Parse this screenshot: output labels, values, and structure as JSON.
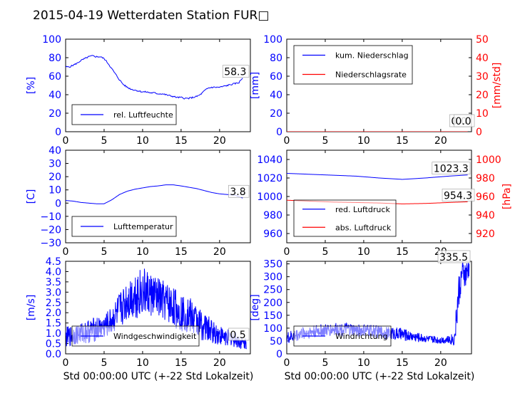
{
  "title": "2015-04-19 Wetterdaten Station FUR□",
  "colors": {
    "blue": "#0000ff",
    "red": "#ff0000",
    "lightblue": "#7f7fff",
    "black": "#000000"
  },
  "chart_data": [
    {
      "type": "line",
      "ylabel": "[%]",
      "xlim": [
        0,
        24
      ],
      "ylim": [
        0,
        100
      ],
      "xticks": [
        "0",
        "5",
        "10",
        "15",
        "20"
      ],
      "yticks": [
        "0",
        "20",
        "40",
        "60",
        "80",
        "100"
      ],
      "legend": {
        "placement": "lower-left",
        "entries": [
          "rel. Luftfeuchte"
        ]
      },
      "last_value_label": "58.3",
      "series": [
        {
          "name": "rel. Luftfeuchte",
          "color": "blue",
          "x": [
            0,
            0.5,
            1,
            1.5,
            2,
            2.5,
            3,
            3.5,
            4,
            4.5,
            5,
            5.5,
            6,
            6.5,
            7,
            7.5,
            8,
            8.5,
            9,
            9.5,
            10,
            10.5,
            11,
            11.5,
            12,
            12.5,
            13,
            13.5,
            14,
            14.5,
            15,
            15.5,
            16,
            16.5,
            17,
            17.5,
            18,
            18.5,
            19,
            19.5,
            20,
            20.5,
            21,
            21.5,
            22,
            22.5,
            23
          ],
          "y": [
            70,
            70,
            72,
            74,
            77,
            79,
            81,
            82,
            81,
            81,
            79,
            74,
            68,
            62,
            56,
            51,
            48,
            46,
            45,
            44,
            43,
            43,
            42,
            42,
            41,
            41,
            40,
            39,
            38,
            37,
            37,
            36,
            36,
            37,
            38,
            40,
            44,
            47,
            48,
            48,
            48,
            49,
            50,
            51,
            52,
            53,
            58.3
          ]
        }
      ]
    },
    {
      "type": "line",
      "ylabel": "[mm]",
      "y2label": "[mm/std]",
      "xlim": [
        0,
        24
      ],
      "ylim": [
        0,
        100
      ],
      "y2lim": [
        0,
        50
      ],
      "xticks": [
        "0",
        "5",
        "10",
        "15",
        "20"
      ],
      "yticks": [
        "0",
        "20",
        "40",
        "60",
        "80",
        "100"
      ],
      "y2ticks": [
        "0",
        "10",
        "20",
        "30",
        "40",
        "50"
      ],
      "legend": {
        "placement": "upper-left",
        "entries": [
          "kum. Niederschlag",
          "Niederschlagsrate"
        ]
      },
      "last_value_label": "0.0",
      "last_value_label2": "0.0",
      "series": [
        {
          "name": "kum. Niederschlag",
          "color": "blue",
          "x": [
            0,
            23.5
          ],
          "y": [
            0,
            0
          ]
        },
        {
          "name": "Niederschlagsrate",
          "color": "red",
          "axis": "right",
          "x": [
            0,
            23.5
          ],
          "y": [
            0,
            0
          ]
        }
      ]
    },
    {
      "type": "line",
      "ylabel": "[C]",
      "xlim": [
        0,
        24
      ],
      "ylim": [
        -30,
        40
      ],
      "xticks": [
        "0",
        "5",
        "10",
        "15",
        "20"
      ],
      "yticks": [
        "−30",
        "−20",
        "−10",
        "0",
        "10",
        "20",
        "30",
        "40"
      ],
      "legend": {
        "placement": "lower-left",
        "entries": [
          "Lufttemperatur"
        ]
      },
      "last_value_label": "3.8",
      "series": [
        {
          "name": "Lufttemperatur",
          "color": "blue",
          "x": [
            0,
            1,
            2,
            3,
            4,
            5,
            6,
            7,
            8,
            9,
            10,
            11,
            12,
            13,
            14,
            15,
            16,
            17,
            18,
            19,
            20,
            21,
            22,
            23
          ],
          "y": [
            2,
            1.5,
            0.5,
            0,
            -0.5,
            -0.5,
            2.5,
            6.5,
            9,
            10.5,
            11.5,
            12.5,
            13,
            13.8,
            13.8,
            13,
            12,
            11,
            9.5,
            8,
            7,
            6.5,
            6,
            3.8
          ]
        }
      ]
    },
    {
      "type": "line",
      "ylabel": "[hPa]",
      "ylabel_side": "right",
      "xlim": [
        0,
        24
      ],
      "ylim": [
        950,
        1050
      ],
      "y2lim": [
        910,
        1010
      ],
      "xticks": [
        "0",
        "5",
        "10",
        "15",
        "20"
      ],
      "yticks": [
        "960",
        "980",
        "1000",
        "1020",
        "1040"
      ],
      "y2ticks": [
        "920",
        "940",
        "960",
        "980",
        "1000"
      ],
      "legend": {
        "placement": "lower-left",
        "entries": [
          "red. Luftdruck",
          "abs. Luftdruck"
        ]
      },
      "last_value_label": "1023.3",
      "last_value_label2": "954.3",
      "series": [
        {
          "name": "red. Luftdruck",
          "color": "blue",
          "x": [
            0,
            3,
            6,
            9,
            12,
            15,
            18,
            21,
            23.5
          ],
          "y": [
            1025,
            1024,
            1023,
            1022,
            1020,
            1018.5,
            1020,
            1022,
            1023.3
          ]
        },
        {
          "name": "abs. Luftdruck",
          "color": "red",
          "axis": "right",
          "x": [
            0,
            3,
            6,
            9,
            12,
            15,
            18,
            21,
            23.5
          ],
          "y": [
            956,
            955,
            954,
            953.5,
            953,
            952,
            952.5,
            953.5,
            954.3
          ]
        }
      ]
    },
    {
      "type": "line",
      "ylabel": "[m/s]",
      "xlim": [
        0,
        24
      ],
      "ylim": [
        0,
        4.5
      ],
      "xticks": [
        "0",
        "5",
        "10",
        "15",
        "20"
      ],
      "yticks": [
        "0.0",
        "0.5",
        "1.0",
        "1.5",
        "2.0",
        "2.5",
        "3.0",
        "3.5",
        "4.0",
        "4.5"
      ],
      "legend": {
        "placement": "lower-left",
        "entries": [
          "Windgeschwindigkeit"
        ]
      },
      "last_value_label": "0.5",
      "series": [
        {
          "name": "Windgeschwindigkeit",
          "color": "blue",
          "noisy": true,
          "x": [
            0,
            1,
            2,
            3,
            4,
            5,
            6,
            7,
            8,
            9,
            10,
            11,
            12,
            13,
            14,
            15,
            16,
            17,
            18,
            19,
            20,
            21,
            22,
            23,
            23.5
          ],
          "y": [
            0.8,
            0.9,
            1.0,
            1.1,
            1.2,
            1.3,
            1.6,
            2.1,
            2.6,
            2.9,
            3.0,
            2.9,
            2.7,
            2.5,
            2.3,
            2.0,
            1.9,
            1.6,
            1.3,
            1.1,
            0.9,
            0.8,
            0.7,
            0.5,
            0.5
          ],
          "amp": [
            0.5,
            0.5,
            0.5,
            0.6,
            0.6,
            0.6,
            0.7,
            0.9,
            1.0,
            1.2,
            1.2,
            1.1,
            1.0,
            1.0,
            1.0,
            0.9,
            0.9,
            0.8,
            0.7,
            0.6,
            0.5,
            0.4,
            0.4,
            0.3,
            0.3
          ]
        }
      ]
    },
    {
      "type": "line",
      "ylabel": "[deg]",
      "xlim": [
        0,
        24
      ],
      "ylim": [
        0,
        360
      ],
      "xticks": [
        "0",
        "5",
        "10",
        "15",
        "20"
      ],
      "yticks": [
        "0",
        "50",
        "100",
        "150",
        "200",
        "250",
        "300",
        "350"
      ],
      "legend": {
        "placement": "lower-left",
        "entries": [
          "Windrichtung"
        ]
      },
      "last_value_label": "335.5",
      "series": [
        {
          "name": "Windrichtung",
          "color": "blue",
          "noisy": true,
          "x": [
            0,
            1,
            2,
            3,
            4,
            5,
            6,
            7,
            8,
            9,
            10,
            11,
            12,
            13,
            14,
            15,
            16,
            17,
            18,
            19,
            20,
            21,
            21.8,
            22.3,
            22.8,
            23.3,
            23.7
          ],
          "y": [
            60,
            70,
            80,
            85,
            90,
            90,
            95,
            95,
            95,
            90,
            90,
            90,
            85,
            80,
            80,
            75,
            70,
            65,
            60,
            55,
            55,
            55,
            60,
            230,
            320,
            300,
            335.5
          ],
          "amp": [
            25,
            25,
            25,
            25,
            25,
            25,
            25,
            25,
            25,
            25,
            25,
            25,
            25,
            25,
            25,
            25,
            20,
            20,
            15,
            15,
            15,
            15,
            30,
            80,
            40,
            60,
            40
          ]
        }
      ]
    }
  ],
  "xlabel": "Std 00:00:00 UTC (+-22 Std Lokalzeit)"
}
